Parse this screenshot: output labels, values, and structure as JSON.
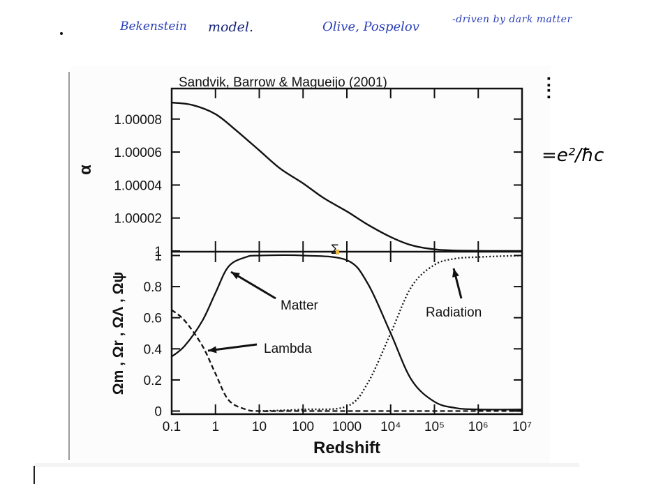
{
  "notes": {
    "bekenstein": "Bekenstein",
    "model": "model.",
    "olive": "Olive, Pospelov",
    "driven": "-driven by dark matter",
    "alpha_def": "=e²/ħc",
    "colon": ":"
  },
  "chart_data": [
    {
      "type": "line",
      "title": "Sandvik, Barrow & Magueijo (2001)",
      "xlabel": "",
      "ylabel": "α",
      "xscale": "log",
      "xlim": [
        0.1,
        10000000
      ],
      "ylim": [
        1.0,
        1.0000985
      ],
      "yticks": [
        1.0,
        1.00002,
        1.00004,
        1.00006,
        1.00008
      ],
      "ytick_labels": [
        "1",
        "1.00002",
        "1.00004",
        "1.00006",
        "1.00008"
      ],
      "series": [
        {
          "x": [
            0.1,
            0.3,
            1,
            3,
            10,
            30,
            100,
            300,
            1000,
            3000,
            10000,
            30000,
            100000,
            300000,
            1000000,
            3000000,
            10000000
          ],
          "y": [
            1.00009,
            1.0000885,
            1.000083,
            1.000073,
            1.000061,
            1.00005,
            1.000041,
            1.000032,
            1.000024,
            1.000016,
            1.0000085,
            1.0000035,
            1.000001,
            1.0000003,
            1.0000001,
            1.0,
            1.0
          ]
        }
      ]
    },
    {
      "type": "line",
      "xlabel": "Redshift",
      "ylabel": "Ωm , Ωr , ΩΛ , Ωψ",
      "xscale": "log",
      "xlim": [
        0.1,
        10000000
      ],
      "ylim": [
        -0.02,
        1.02
      ],
      "xtick_labels": [
        "0.1",
        "1",
        "10",
        "100",
        "1000",
        "10⁴",
        "10⁵",
        "10⁶",
        "10⁷"
      ],
      "yticks": [
        0,
        0.2,
        0.4,
        0.6,
        0.8,
        1
      ],
      "ytick_labels": [
        "0",
        "0.2",
        "0.4",
        "0.6",
        "0.8",
        "1"
      ],
      "series": [
        {
          "name": "Matter",
          "style": "solid",
          "x": [
            0.1,
            0.2,
            0.5,
            1,
            2,
            5,
            10,
            100,
            1000,
            3000,
            10000,
            30000,
            100000,
            300000,
            1000000,
            10000000
          ],
          "y": [
            0.35,
            0.42,
            0.58,
            0.76,
            0.93,
            0.99,
            1.0,
            1.0,
            0.97,
            0.82,
            0.5,
            0.2,
            0.06,
            0.02,
            0.01,
            0.01
          ]
        },
        {
          "name": "Lambda",
          "style": "dashed",
          "x": [
            0.1,
            0.2,
            0.5,
            1,
            2,
            5,
            10,
            100,
            10000000
          ],
          "y": [
            0.65,
            0.58,
            0.42,
            0.24,
            0.07,
            0.01,
            0.0,
            0.0,
            0.0
          ]
        },
        {
          "name": "Radiation",
          "style": "dotted",
          "x": [
            10,
            100,
            1000,
            3000,
            10000,
            30000,
            100000,
            300000,
            1000000,
            10000000
          ],
          "y": [
            0.0,
            0.01,
            0.03,
            0.18,
            0.5,
            0.8,
            0.94,
            0.98,
            0.99,
            1.0
          ]
        }
      ],
      "annotations": [
        "Matter",
        "Lambda",
        "Radiation"
      ]
    }
  ]
}
